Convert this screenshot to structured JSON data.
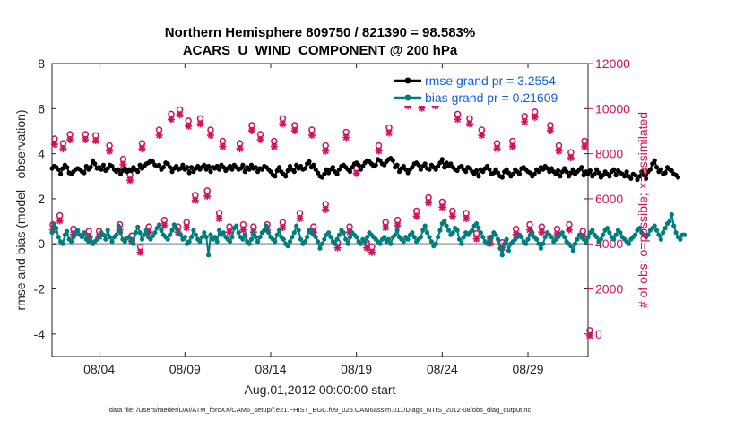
{
  "chart_data": {
    "type": "line",
    "title_line1": "Northern Hemisphere 809750 / 821390 = 98.583%",
    "title_line2": "ACARS_U_WIND_COMPONENT @ 200 hPa",
    "ylabel_left": "rmse and bias (model - observation)",
    "ylabel_right": "# of obs: o=possible; ×=assimilated",
    "xlabel": "Aug.01,2012 00:00:00 start",
    "ylim_left": [
      -5,
      8
    ],
    "ylim_right": [
      -1000,
      12000
    ],
    "xlim_days": [
      1.25,
      32.5
    ],
    "x_ticks": [
      {
        "day": 4,
        "label": "08/04"
      },
      {
        "day": 9,
        "label": "08/09"
      },
      {
        "day": 14,
        "label": "08/14"
      },
      {
        "day": 19,
        "label": "08/19"
      },
      {
        "day": 24,
        "label": "08/24"
      },
      {
        "day": 29,
        "label": "08/29"
      }
    ],
    "y_ticks_left": [
      "8",
      "6",
      "4",
      "2",
      "0",
      "-2",
      "-4"
    ],
    "y_ticks_right": [
      "12000",
      "10000",
      "8000",
      "6000",
      "4000",
      "2000",
      "0"
    ],
    "legend": {
      "rmse": "rmse grand pr = 3.2554",
      "bias": "bias grand pr = 0.21609"
    },
    "series": [
      {
        "name": "rmse",
        "color": "#000000",
        "x_start_day": 1.25,
        "x_step_day": 0.125,
        "values": [
          3.35,
          3.45,
          3.4,
          3.3,
          3.1,
          3.35,
          3.5,
          3.4,
          3.15,
          3.1,
          3.2,
          3.3,
          3.35,
          3.3,
          3.2,
          3.15,
          3.45,
          3.3,
          3.4,
          3.7,
          3.55,
          3.35,
          3.4,
          3.3,
          3.5,
          3.25,
          3.35,
          3.5,
          3.45,
          3.3,
          3.2,
          3.3,
          3.1,
          3.25,
          3.35,
          3.2,
          3.3,
          3.25,
          3.4,
          3.3,
          3.2,
          3.5,
          3.35,
          3.45,
          3.55,
          3.6,
          3.7,
          3.65,
          3.5,
          3.45,
          3.5,
          3.3,
          3.4,
          3.6,
          3.55,
          3.4,
          3.2,
          3.35,
          3.45,
          3.3,
          3.35,
          3.5,
          3.3,
          3.4,
          3.15,
          3.4,
          3.2,
          3.35,
          3.45,
          3.3,
          3.4,
          3.5,
          3.3,
          3.45,
          3.2,
          3.4,
          3.35,
          3.45,
          3.3,
          3.5,
          3.4,
          3.25,
          3.35,
          3.45,
          3.3,
          3.5,
          3.4,
          3.3,
          3.35,
          3.5,
          3.2,
          3.4,
          3.3,
          3.5,
          3.35,
          3.4,
          3.2,
          3.35,
          3.3,
          3.45,
          3.4,
          3.3,
          3.2,
          3.05,
          3.0,
          3.25,
          3.4,
          3.2,
          3.1,
          3.0,
          3.25,
          3.45,
          3.3,
          3.2,
          3.5,
          3.35,
          3.45,
          3.3,
          3.35,
          3.55,
          3.65,
          3.4,
          3.5,
          3.3,
          3.15,
          3.0,
          2.95,
          3.1,
          3.3,
          3.15,
          3.3,
          3.4,
          3.2,
          3.1,
          3.3,
          3.45,
          3.5,
          3.4,
          3.3,
          3.2,
          3.4,
          3.55,
          3.6,
          3.5,
          3.3,
          3.45,
          3.6,
          3.7,
          3.65,
          3.55,
          3.45,
          3.5,
          3.75,
          3.7,
          3.55,
          3.5,
          3.65,
          3.75,
          3.8,
          3.7,
          3.4,
          3.5,
          3.2,
          3.35,
          3.45,
          3.3,
          3.15,
          3.3,
          3.4,
          3.55,
          3.6,
          3.5,
          3.3,
          3.45,
          3.55,
          3.35,
          3.3,
          3.5,
          3.4,
          3.3,
          3.45,
          3.6,
          3.75,
          3.4,
          3.6,
          3.45,
          3.55,
          3.4,
          3.3,
          3.25,
          3.4,
          3.45,
          3.3,
          3.2,
          3.4,
          3.35,
          3.2,
          3.1,
          3.25,
          3.0,
          3.3,
          3.2,
          3.35,
          3.45,
          3.3,
          3.1,
          3.15,
          3.3,
          3.15,
          3.0,
          2.95,
          3.2,
          3.3,
          3.15,
          3.0,
          3.1,
          3.3,
          3.2,
          3.1,
          3.35,
          3.4,
          3.3,
          3.2,
          3.15,
          3.0,
          3.1,
          3.3,
          3.2,
          3.4,
          3.3,
          3.45,
          3.35,
          3.2,
          3.35,
          3.2,
          3.1,
          3.25,
          3.0,
          3.2,
          3.35,
          3.2,
          3.0,
          3.15,
          3.3,
          3.1,
          3.2,
          3.3,
          3.4,
          3.05,
          3.2,
          3.1,
          3.25,
          3.0,
          3.1,
          3.3,
          3.15,
          2.95,
          3.05,
          3.2,
          3.1,
          3.0,
          3.2,
          3.3,
          3.05,
          3.25,
          3.15,
          3.1,
          3.0,
          3.2,
          3.0,
          2.9,
          3.1,
          3.05,
          2.85,
          3.0,
          3.2,
          3.05,
          2.9,
          3.2,
          3.3,
          3.55,
          3.7,
          3.4,
          3.2,
          3.3,
          3.1,
          3.15,
          3.4,
          3.3,
          3.25,
          3.1,
          3.05,
          2.95
        ]
      },
      {
        "name": "bias",
        "color": "#007d7d",
        "x_start_day": 1.25,
        "x_step_day": 0.125,
        "values": [
          0.5,
          0.85,
          0.7,
          0.3,
          0.1,
          0.0,
          0.4,
          0.55,
          0.2,
          0.1,
          0.3,
          0.45,
          0.6,
          0.4,
          0.3,
          0.5,
          0.2,
          0.1,
          0.3,
          0.0,
          0.1,
          0.2,
          0.3,
          0.5,
          0.4,
          0.2,
          0.6,
          0.3,
          0.1,
          0.3,
          0.4,
          0.8,
          0.5,
          0.2,
          0.1,
          0.25,
          0.3,
          0.1,
          0.0,
          0.5,
          0.75,
          0.5,
          0.2,
          0.4,
          0.6,
          0.3,
          0.2,
          0.35,
          0.5,
          0.7,
          0.85,
          0.6,
          0.4,
          0.3,
          0.2,
          0.4,
          0.6,
          0.85,
          0.7,
          0.5,
          0.4,
          0.2,
          0.3,
          0.0,
          0.1,
          0.3,
          0.6,
          0.4,
          0.2,
          0.1,
          0.3,
          0.5,
          0.3,
          -0.5,
          0.4,
          0.2,
          0.3,
          0.1,
          0.6,
          0.4,
          0.5,
          0.3,
          0.2,
          0.1,
          0.3,
          0.7,
          0.8,
          0.5,
          0.3,
          0.2,
          0.4,
          0.1,
          0.0,
          0.2,
          0.5,
          0.3,
          0.1,
          0.3,
          0.5,
          0.6,
          0.8,
          0.5,
          0.3,
          0.2,
          0.1,
          0.4,
          0.6,
          0.3,
          0.2,
          0.0,
          -0.1,
          0.1,
          0.3,
          0.5,
          0.8,
          0.6,
          0.2,
          0.0,
          0.1,
          0.3,
          0.6,
          0.5,
          0.4,
          0.3,
          0.1,
          -0.2,
          0.0,
          0.2,
          0.4,
          0.5,
          0.3,
          0.1,
          0.0,
          0.2,
          0.4,
          0.6,
          0.5,
          0.2,
          0.0,
          0.3,
          0.5,
          0.4,
          0.3,
          0.1,
          0.0,
          0.2,
          0.1,
          0.3,
          0.5,
          0.4,
          0.3,
          0.2,
          0.1,
          0.0,
          0.2,
          0.3,
          0.1,
          0.2,
          0.0,
          0.3,
          0.4,
          0.6,
          0.3,
          0.2,
          0.1,
          0.3,
          0.2,
          0.4,
          0.5,
          0.3,
          0.1,
          0.2,
          0.3,
          0.6,
          0.8,
          0.5,
          0.3,
          0.1,
          -0.1,
          0.0,
          0.3,
          0.6,
          0.9,
          1.0,
          0.8,
          0.6,
          0.4,
          0.5,
          0.7,
          0.6,
          0.2,
          0.0,
          0.3,
          0.5,
          0.4,
          0.5,
          0.6,
          0.8,
          0.9,
          0.7,
          0.5,
          0.3,
          0.1,
          0.0,
          0.2,
          0.3,
          0.5,
          0.4,
          0.2,
          -0.2,
          -0.5,
          0.0,
          0.2,
          -0.3,
          0.0,
          0.1,
          0.2,
          0.3,
          0.4,
          0.3,
          0.1,
          0.0,
          0.2,
          0.4,
          0.5,
          0.3,
          0.2,
          0.0,
          -0.2,
          0.0,
          0.3,
          0.5,
          0.4,
          0.3,
          0.1,
          0.2,
          0.3,
          0.4,
          0.5,
          0.3,
          0.1,
          0.0,
          -0.1,
          -0.3,
          0.0,
          0.2,
          0.4,
          0.3,
          0.2,
          0.1,
          0.3,
          0.5,
          0.6,
          0.4,
          0.3,
          0.1,
          0.2,
          0.4,
          0.6,
          0.7,
          0.5,
          0.3,
          0.2,
          0.4,
          0.6,
          0.5,
          0.3,
          0.2,
          0.1,
          0.0,
          0.2,
          0.3,
          0.4,
          0.6,
          0.7,
          0.5,
          0.4,
          0.3,
          0.4,
          0.6,
          0.7,
          0.8,
          0.6,
          0.4,
          0.2,
          0.5,
          0.7,
          0.9,
          1.0,
          1.3,
          0.8,
          0.5,
          0.3,
          0.2,
          0.4,
          0.4
        ]
      },
      {
        "name": "obs possible / assimilated",
        "color": "#d0105a",
        "axis": "right",
        "points": [
          [
            1.4,
            8500
          ],
          [
            1.9,
            8300
          ],
          [
            2.3,
            8700
          ],
          [
            3.2,
            8700
          ],
          [
            3.8,
            8650
          ],
          [
            4.6,
            8200
          ],
          [
            5.4,
            7600
          ],
          [
            5.8,
            6900
          ],
          [
            6.5,
            8300
          ],
          [
            7.5,
            8900
          ],
          [
            8.2,
            9600
          ],
          [
            8.7,
            9800
          ],
          [
            9.2,
            9300
          ],
          [
            9.9,
            9400
          ],
          [
            10.5,
            8900
          ],
          [
            11.2,
            8400
          ],
          [
            12.2,
            8300
          ],
          [
            12.9,
            9100
          ],
          [
            13.4,
            8700
          ],
          [
            14.2,
            8400
          ],
          [
            14.7,
            9400
          ],
          [
            15.4,
            9100
          ],
          [
            16.4,
            8900
          ],
          [
            17.2,
            8200
          ],
          [
            18.4,
            8800
          ],
          [
            19.0,
            7200
          ],
          [
            20.3,
            8200
          ],
          [
            20.9,
            9000
          ],
          [
            22.0,
            10200
          ],
          [
            22.8,
            10100
          ],
          [
            23.6,
            10200
          ],
          [
            24.2,
            10400
          ],
          [
            24.9,
            9600
          ],
          [
            25.6,
            9400
          ],
          [
            26.3,
            8900
          ],
          [
            27.2,
            8300
          ],
          [
            28.1,
            8400
          ],
          [
            28.8,
            9500
          ],
          [
            29.4,
            9700
          ],
          [
            30.3,
            9100
          ],
          [
            30.8,
            8200
          ],
          [
            31.5,
            7900
          ],
          [
            32.3,
            8400
          ],
          [
            1.3,
            4700
          ],
          [
            1.7,
            5100
          ],
          [
            2.5,
            4500
          ],
          [
            3.4,
            4400
          ],
          [
            4.0,
            4400
          ],
          [
            5.2,
            4700
          ],
          [
            5.9,
            4200
          ],
          [
            6.4,
            3700
          ],
          [
            6.9,
            4600
          ],
          [
            7.8,
            4900
          ],
          [
            8.6,
            4600
          ],
          [
            9.1,
            4800
          ],
          [
            9.6,
            6000
          ],
          [
            10.3,
            6200
          ],
          [
            11.0,
            5200
          ],
          [
            11.6,
            4600
          ],
          [
            12.4,
            4700
          ],
          [
            13.0,
            4600
          ],
          [
            13.8,
            4700
          ],
          [
            14.7,
            4800
          ],
          [
            15.7,
            5200
          ],
          [
            16.5,
            4600
          ],
          [
            17.2,
            5600
          ],
          [
            17.9,
            3900
          ],
          [
            18.6,
            4600
          ],
          [
            19.6,
            3900
          ],
          [
            19.9,
            3700
          ],
          [
            20.7,
            4800
          ],
          [
            21.4,
            4900
          ],
          [
            22.5,
            5300
          ],
          [
            23.2,
            5900
          ],
          [
            24.0,
            5700
          ],
          [
            24.6,
            5300
          ],
          [
            25.4,
            5200
          ],
          [
            26.0,
            4300
          ],
          [
            26.8,
            4100
          ],
          [
            27.5,
            3900
          ],
          [
            28.3,
            4500
          ],
          [
            29.1,
            4700
          ],
          [
            29.8,
            4600
          ],
          [
            30.7,
            4500
          ],
          [
            31.4,
            4700
          ],
          [
            32.2,
            4400
          ],
          [
            32.6,
            0
          ]
        ]
      }
    ]
  },
  "footer": "data file: /Users/raeder/DAI/ATM_forcXX/CAM6_setup/f.e21.FHIST_BGC.f09_025.CAM6assim.011/Diags_NTrS_2012-08/obs_diag_output.nc"
}
